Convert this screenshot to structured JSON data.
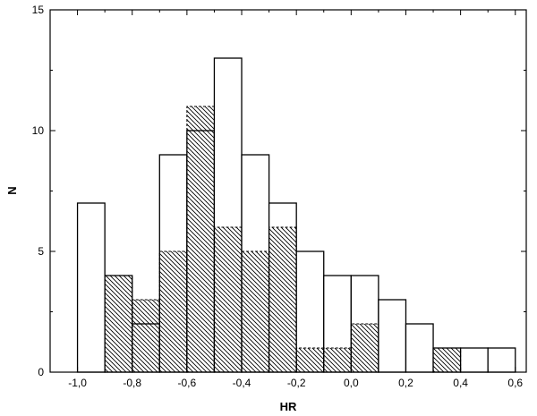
{
  "chart_data": {
    "type": "bar",
    "title": "",
    "xlabel": "HR",
    "ylabel": "N",
    "xlim": [
      -1.1,
      0.64
    ],
    "ylim": [
      0,
      15
    ],
    "xticks": [
      -1.0,
      -0.8,
      -0.6,
      -0.4,
      -0.2,
      0.0,
      0.2,
      0.4,
      0.6
    ],
    "xtick_labels": [
      "-1,0",
      "-0,8",
      "-0,6",
      "-0,4",
      "-0,2",
      "0,0",
      "0,2",
      "0,4",
      "0,6"
    ],
    "yticks": [
      0,
      5,
      10,
      15
    ],
    "ytick_labels": [
      "0",
      "5",
      "10",
      "15"
    ],
    "bin_width": 0.1,
    "series": [
      {
        "style": "open",
        "bins": [
          {
            "start": -1.0,
            "value": 7
          },
          {
            "start": -0.9,
            "value": 4
          },
          {
            "start": -0.8,
            "value": 2
          },
          {
            "start": -0.7,
            "value": 9
          },
          {
            "start": -0.6,
            "value": 10
          },
          {
            "start": -0.5,
            "value": 13
          },
          {
            "start": -0.4,
            "value": 9
          },
          {
            "start": -0.3,
            "value": 7
          },
          {
            "start": -0.2,
            "value": 5
          },
          {
            "start": -0.1,
            "value": 4
          },
          {
            "start": 0.0,
            "value": 4
          },
          {
            "start": 0.1,
            "value": 3
          },
          {
            "start": 0.2,
            "value": 2
          },
          {
            "start": 0.3,
            "value": 1
          },
          {
            "start": 0.4,
            "value": 1
          },
          {
            "start": 0.5,
            "value": 1
          }
        ]
      },
      {
        "style": "hatched",
        "bins": [
          {
            "start": -0.9,
            "value": 4
          },
          {
            "start": -0.8,
            "value": 3
          },
          {
            "start": -0.7,
            "value": 5
          },
          {
            "start": -0.6,
            "value": 11
          },
          {
            "start": -0.5,
            "value": 6
          },
          {
            "start": -0.4,
            "value": 5
          },
          {
            "start": -0.3,
            "value": 6
          },
          {
            "start": -0.2,
            "value": 1
          },
          {
            "start": -0.1,
            "value": 1
          },
          {
            "start": 0.0,
            "value": 2
          },
          {
            "start": 0.3,
            "value": 1
          }
        ]
      }
    ]
  }
}
